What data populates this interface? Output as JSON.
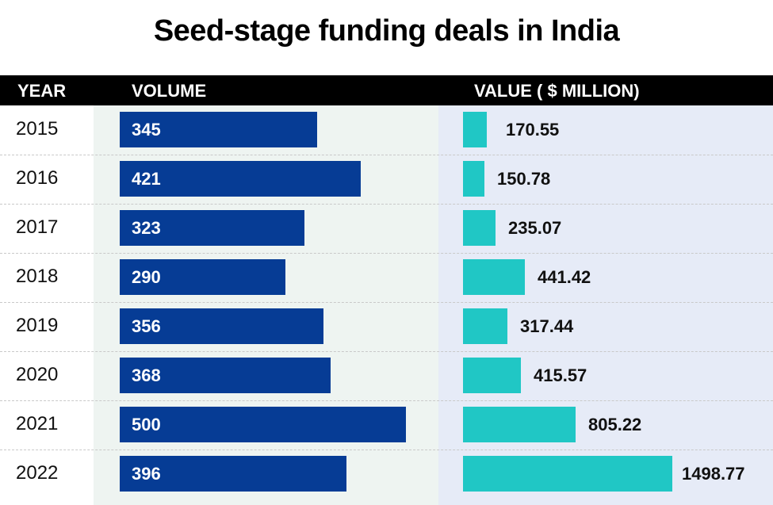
{
  "title": "Seed-stage funding deals in India",
  "header": {
    "year": "YEAR",
    "volume": "VOLUME",
    "value": "VALUE ( $ MILLION)"
  },
  "colors": {
    "volume_bar": "#063c95",
    "value_bar": "#20c7c5",
    "header_bg": "#000000"
  },
  "chart_data": {
    "type": "bar",
    "title": "Seed-stage funding deals in India",
    "categories": [
      "2015",
      "2016",
      "2017",
      "2018",
      "2019",
      "2020",
      "2021",
      "2022"
    ],
    "series": [
      {
        "name": "VOLUME",
        "values": [
          345,
          421,
          323,
          290,
          356,
          368,
          500,
          396
        ]
      },
      {
        "name": "VALUE ( $ MILLION)",
        "values": [
          170.55,
          150.78,
          235.07,
          441.42,
          317.44,
          415.57,
          805.22,
          1498.77
        ]
      }
    ]
  }
}
